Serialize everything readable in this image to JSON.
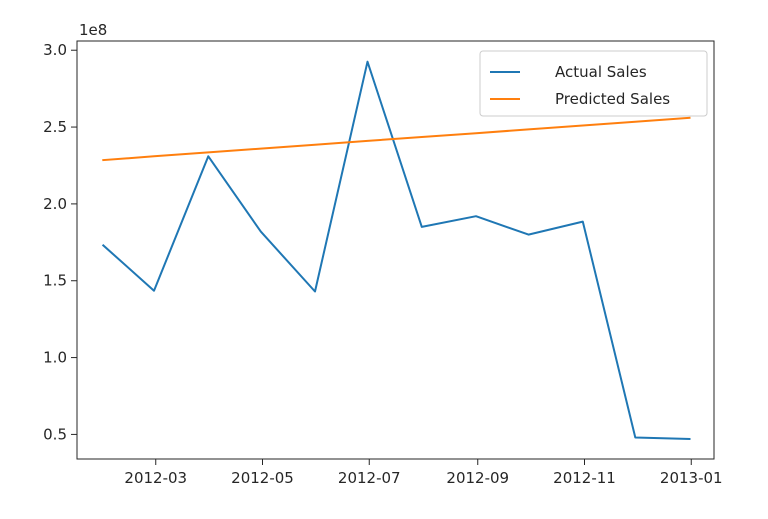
{
  "chart_data": {
    "type": "line",
    "offset_text": "1e8",
    "x": [
      "2012-01-31",
      "2012-02-29",
      "2012-03-31",
      "2012-04-30",
      "2012-05-31",
      "2012-06-30",
      "2012-07-31",
      "2012-08-31",
      "2012-09-30",
      "2012-10-31",
      "2012-11-30",
      "2012-12-31"
    ],
    "series": [
      {
        "name": "Actual Sales",
        "color": "#1f77b4",
        "values": [
          1.73,
          1.435,
          2.31,
          1.82,
          1.43,
          2.925,
          1.85,
          1.92,
          1.8,
          1.885,
          0.48,
          0.47
        ]
      },
      {
        "name": "Predicted Sales",
        "color": "#ff7f0e",
        "values": [
          2.285,
          2.31,
          2.335,
          2.36,
          2.385,
          2.41,
          2.435,
          2.46,
          2.485,
          2.51,
          2.535,
          2.56
        ]
      }
    ],
    "xticks": [
      "2012-03",
      "2012-05",
      "2012-07",
      "2012-09",
      "2012-11",
      "2013-01"
    ],
    "yticks": [
      "0.5",
      "1.0",
      "1.5",
      "2.0",
      "2.5",
      "3.0"
    ],
    "ylim": [
      0.34,
      3.06
    ],
    "xlim": [
      "2012-01-16",
      "2013-01-14"
    ],
    "legend_position": "upper right",
    "grid": false
  }
}
